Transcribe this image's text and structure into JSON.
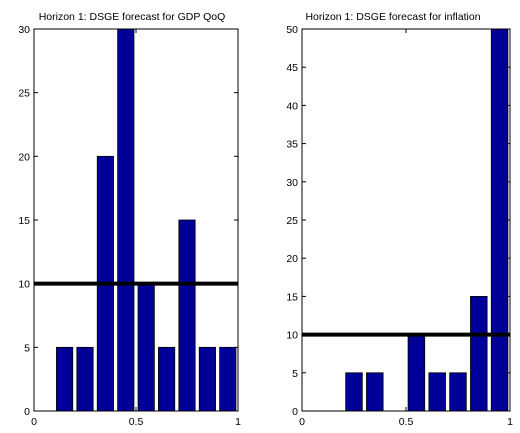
{
  "chart_data": [
    {
      "type": "bar",
      "title": "Horizon 1: DSGE forecast for GDP QoQ",
      "xlim": [
        0,
        1
      ],
      "ylim": [
        0,
        30
      ],
      "xticks": [
        0,
        0.5,
        1
      ],
      "xtick_labels": [
        "0",
        "0.5",
        "1"
      ],
      "yticks": [
        0,
        5,
        10,
        15,
        20,
        25,
        30
      ],
      "bin_width": 0.1,
      "x": [
        0.05,
        0.15,
        0.25,
        0.35,
        0.45,
        0.55,
        0.65,
        0.75,
        0.85,
        0.95
      ],
      "values": [
        0,
        5,
        5,
        20,
        30,
        10,
        5,
        15,
        5,
        5
      ],
      "reference_line": 10,
      "bar_color": "#000099",
      "grid": false,
      "xlabel": "",
      "ylabel": ""
    },
    {
      "type": "bar",
      "title": "Horizon 1: DSGE forecast for inflation",
      "xlim": [
        0,
        1
      ],
      "ylim": [
        0,
        50
      ],
      "xticks": [
        0,
        0.5,
        1
      ],
      "xtick_labels": [
        "0",
        "0.5",
        "1"
      ],
      "yticks": [
        0,
        5,
        10,
        15,
        20,
        25,
        30,
        35,
        40,
        45,
        50
      ],
      "bin_width": 0.1,
      "x": [
        0.05,
        0.15,
        0.25,
        0.35,
        0.45,
        0.55,
        0.65,
        0.75,
        0.85,
        0.95
      ],
      "values": [
        0,
        0,
        5,
        5,
        0,
        10,
        5,
        5,
        15,
        50
      ],
      "reference_line": 10,
      "bar_color": "#000099",
      "grid": false,
      "xlabel": "",
      "ylabel": ""
    }
  ]
}
